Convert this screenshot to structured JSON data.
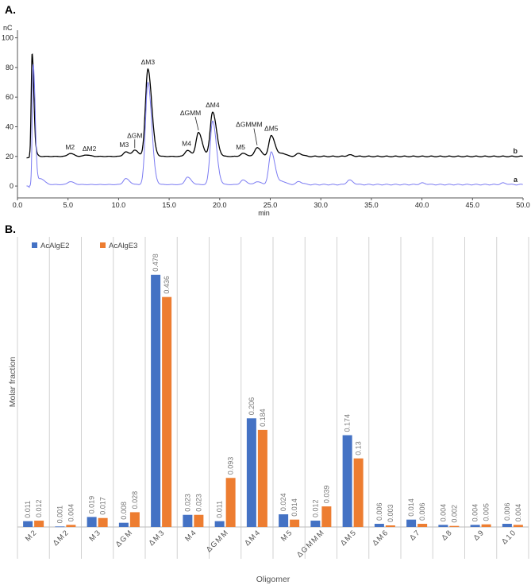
{
  "panel_a_label": "A.",
  "panel_b_label": "B.",
  "chart_data": [
    {
      "type": "line",
      "panel": "A",
      "ylabel": "nC",
      "xlabel": "min",
      "xlim": [
        0,
        50
      ],
      "ylim": [
        -8,
        103
      ],
      "x_ticks": [
        "0.0",
        "5.0",
        "10.0",
        "15.0",
        "20.0",
        "25.0",
        "30.0",
        "35.0",
        "40.0",
        "45.0",
        "50.0"
      ],
      "y_ticks": [
        0,
        20,
        40,
        60,
        80,
        100
      ],
      "series": [
        {
          "name": "b",
          "color": "#000000",
          "baseline": 20,
          "points": [
            [
              1.1,
              20
            ],
            [
              1.45,
              89
            ],
            [
              1.65,
              24
            ],
            [
              1.9,
              21
            ],
            [
              5.2,
              22
            ],
            [
              6.8,
              21
            ],
            [
              10.7,
              23
            ],
            [
              11.6,
              24
            ],
            [
              12.9,
              79
            ],
            [
              16.8,
              24
            ],
            [
              17.9,
              36
            ],
            [
              19.3,
              50
            ],
            [
              22.3,
              22
            ],
            [
              23.7,
              26
            ],
            [
              25.1,
              34
            ],
            [
              26.2,
              22
            ],
            [
              27.8,
              22
            ],
            [
              32.8,
              21
            ]
          ]
        },
        {
          "name": "a",
          "color": "#7b7bf2",
          "baseline": 1,
          "points": [
            [
              1.2,
              0
            ],
            [
              1.55,
              81
            ],
            [
              1.75,
              14
            ],
            [
              2.3,
              5
            ],
            [
              5.2,
              3
            ],
            [
              10.7,
              5
            ],
            [
              12.9,
              70
            ],
            [
              16.8,
              6
            ],
            [
              19.3,
              44
            ],
            [
              22.3,
              4
            ],
            [
              23.7,
              3
            ],
            [
              25.1,
              23
            ],
            [
              26.2,
              3
            ],
            [
              27.8,
              3
            ],
            [
              32.8,
              4
            ],
            [
              40,
              2
            ],
            [
              48,
              2
            ]
          ]
        }
      ],
      "peak_labels": [
        {
          "label": "M2",
          "x": 5.2,
          "y": 22
        },
        {
          "label": "ΔM2",
          "x": 6.8,
          "y": 21
        },
        {
          "label": "M3",
          "x": 10.7,
          "y": 23
        },
        {
          "label": "ΔGM",
          "x": 11.6,
          "y": 24
        },
        {
          "label": "ΔM3",
          "x": 12.9,
          "y": 79
        },
        {
          "label": "M4",
          "x": 16.8,
          "y": 24
        },
        {
          "label": "ΔGMM",
          "x": 17.9,
          "y": 36
        },
        {
          "label": "ΔM4",
          "x": 19.3,
          "y": 50
        },
        {
          "label": "M5",
          "x": 22.3,
          "y": 22
        },
        {
          "label": "ΔGMMM",
          "x": 23.7,
          "y": 26
        },
        {
          "label": "ΔM5",
          "x": 25.1,
          "y": 34
        }
      ],
      "trace_labels": [
        "b",
        "a"
      ]
    },
    {
      "type": "bar",
      "panel": "B",
      "xlabel": "Oligomer",
      "ylabel": "Molar fraction",
      "ylim": [
        0,
        0.55
      ],
      "categories": [
        "M2",
        "ΔM2",
        "M3",
        "ΔGM",
        "ΔM3",
        "M4",
        "ΔGMM",
        "ΔM4",
        "M5",
        "ΔGMMM",
        "ΔM5",
        "ΔM6",
        "Δ7",
        "Δ8",
        "Δ9",
        "Δ10"
      ],
      "series": [
        {
          "name": "AcAlgE2",
          "color": "#4472c4",
          "values": [
            0.011,
            0.001,
            0.019,
            0.008,
            0.478,
            0.023,
            0.011,
            0.206,
            0.024,
            0.012,
            0.174,
            0.006,
            0.014,
            0.004,
            0.004,
            0.006
          ]
        },
        {
          "name": "AcAlgE3",
          "color": "#ed7d31",
          "values": [
            0.012,
            0.004,
            0.017,
            0.028,
            0.436,
            0.023,
            0.093,
            0.184,
            0.014,
            0.039,
            0.13,
            0.003,
            0.006,
            0.002,
            0.005,
            0.004
          ]
        }
      ]
    }
  ]
}
